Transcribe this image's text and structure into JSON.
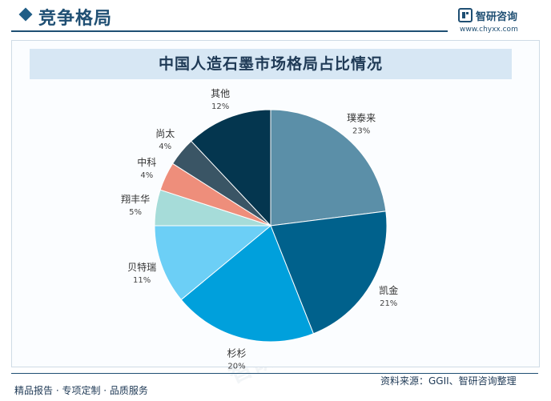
{
  "header": {
    "section_title": "竞争格局",
    "brand_name": "智研咨询",
    "brand_url": "www.chyxx.com"
  },
  "watermark": "智研咨询",
  "chart_data": {
    "type": "pie",
    "title": "中国人造石墨市场格局占比情况",
    "unit": "%",
    "slices": [
      {
        "label": "璞泰来",
        "value": 23,
        "display": "23%",
        "color": "#5b8fa8"
      },
      {
        "label": "凯金",
        "value": 21,
        "display": "21%",
        "color": "#00618c"
      },
      {
        "label": "杉杉",
        "value": 20,
        "display": "20%",
        "color": "#00a0dc"
      },
      {
        "label": "贝特瑞",
        "value": 11,
        "display": "11%",
        "color": "#6ccff6"
      },
      {
        "label": "翔丰华",
        "value": 5,
        "display": "5%",
        "color": "#a6dcd9"
      },
      {
        "label": "中科",
        "value": 4,
        "display": "4%",
        "color": "#ee8e7b"
      },
      {
        "label": "尚太",
        "value": 4,
        "display": "4%",
        "color": "#3a5565"
      },
      {
        "label": "其他",
        "value": 12,
        "display": "12%",
        "color": "#04364f"
      }
    ],
    "start_angle_deg": 0,
    "direction": "clockwise"
  },
  "footer": {
    "left": "精品报告 · 专项定制 · 品质服务",
    "right": "资料来源：GGII、智研咨询整理"
  }
}
